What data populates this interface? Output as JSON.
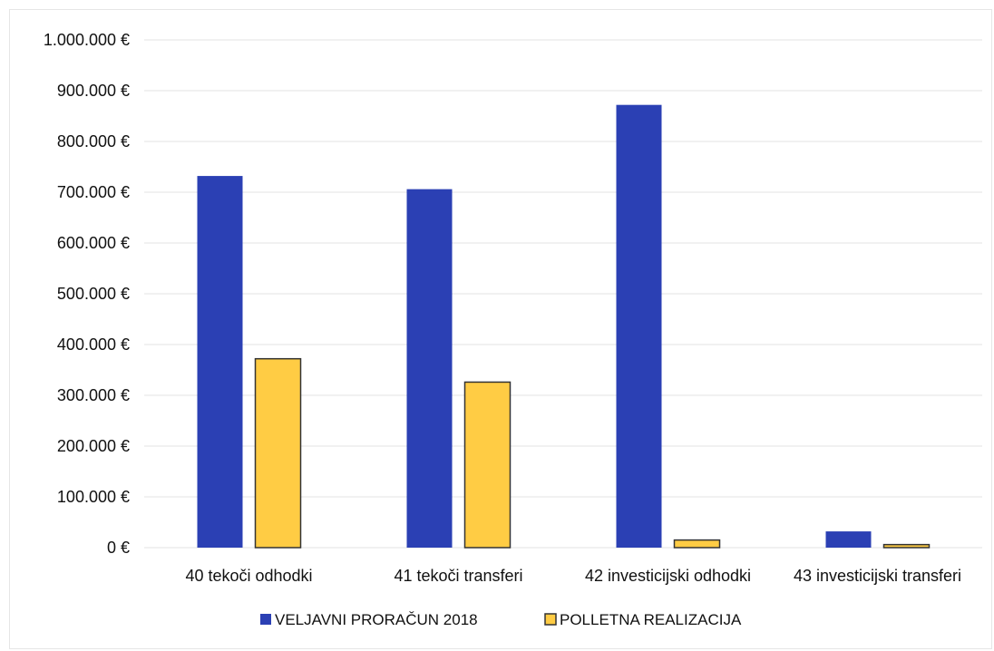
{
  "chart_data": {
    "type": "bar",
    "title": "",
    "xlabel": "",
    "ylabel": "",
    "categories": [
      "40 tekoči odhodki",
      "41 tekoči transferi",
      "42 investicijski odhodki",
      "43 investicijski transferi"
    ],
    "series": [
      {
        "name": "VELJAVNI PRORAČUN 2018",
        "values": [
          732000,
          706000,
          872000,
          32000
        ],
        "color": "#2b40b4"
      },
      {
        "name": "POLLETNA REALIZACIJA",
        "values": [
          372000,
          326000,
          15000,
          6000
        ],
        "color": "#ffcc44"
      }
    ],
    "y_ticks": [
      0,
      100000,
      200000,
      300000,
      400000,
      500000,
      600000,
      700000,
      800000,
      900000,
      1000000
    ],
    "y_tick_labels": [
      "0 €",
      "100.000 €",
      "200.000 €",
      "300.000 €",
      "400.000 €",
      "500.000 €",
      "600.000 €",
      "700.000 €",
      "800.000 €",
      "900.000 €",
      "1.000.000 €"
    ],
    "ylim": [
      0,
      1000000
    ],
    "grid": true,
    "legend_position": "bottom",
    "colors": {
      "gridline": "#e3e3e3",
      "bar_outline": "#333333"
    }
  }
}
